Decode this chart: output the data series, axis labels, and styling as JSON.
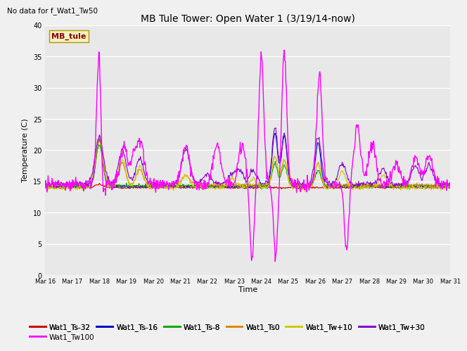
{
  "title": "MB Tule Tower: Open Water 1 (3/19/14-now)",
  "subtitle": "No data for f_Wat1_Tw50",
  "xlabel": "Time",
  "ylabel": "Temperature (C)",
  "ylim": [
    0,
    40
  ],
  "yticks": [
    0,
    5,
    10,
    15,
    20,
    25,
    30,
    35,
    40
  ],
  "xtick_labels": [
    "Mar 16",
    "Mar 17",
    "Mar 18",
    "Mar 19",
    "Mar 20",
    "Mar 21",
    "Mar 22",
    "Mar 23",
    "Mar 24",
    "Mar 25",
    "Mar 26",
    "Mar 27",
    "Mar 28",
    "Mar 29",
    "Mar 30",
    "Mar 31"
  ],
  "bg_color": "#e8e8e8",
  "legend_box_color": "#f5f0c0",
  "legend_box_text": "MB_tule",
  "legend_box_text_color": "#8b0000",
  "series_order": [
    "Wat1_Ts-32",
    "Wat1_Ts-16",
    "Wat1_Ts-8",
    "Wat1_Ts0",
    "Wat1_Tw+10",
    "Wat1_Tw+30",
    "Wat1_Tw100"
  ],
  "series": {
    "Wat1_Ts-32": {
      "color": "#cc0000",
      "lw": 0.8
    },
    "Wat1_Ts-16": {
      "color": "#0000cc",
      "lw": 0.8
    },
    "Wat1_Ts-8": {
      "color": "#00aa00",
      "lw": 0.8
    },
    "Wat1_Ts0": {
      "color": "#dd8800",
      "lw": 0.8
    },
    "Wat1_Tw+10": {
      "color": "#cccc00",
      "lw": 0.8
    },
    "Wat1_Tw+30": {
      "color": "#8800cc",
      "lw": 0.8
    },
    "Wat1_Tw100": {
      "color": "#ff00ff",
      "lw": 1.0
    }
  }
}
